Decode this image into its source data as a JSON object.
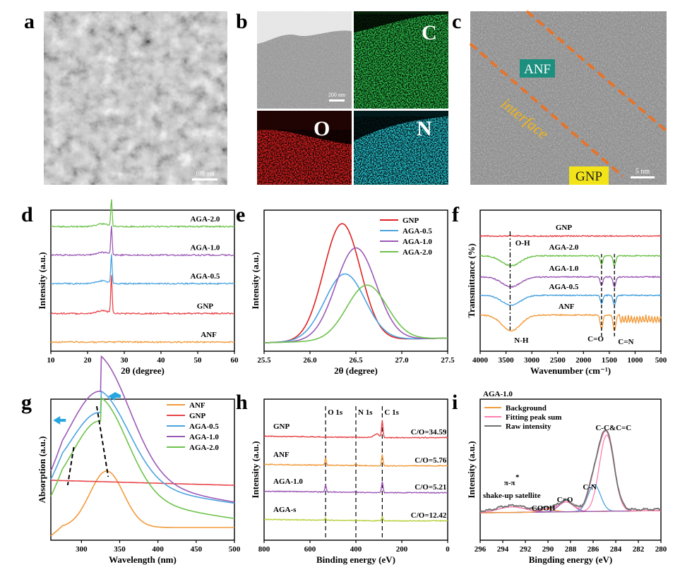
{
  "panel_letters": [
    "a",
    "b",
    "c",
    "d",
    "e",
    "f",
    "g",
    "h",
    "i"
  ],
  "micro": {
    "a": {
      "scalebar": "100 nm"
    },
    "b": {
      "scalebar": "200 nm",
      "maps": [
        "C",
        "O",
        "N"
      ],
      "map_colors": [
        "#2cc24a",
        "#e02020",
        "#27c9d6"
      ]
    },
    "c": {
      "labels": [
        "ANF",
        "interface",
        "GNP"
      ],
      "scalebar": "5 nm"
    }
  },
  "chart_data": [
    {
      "panel": "d",
      "type": "line",
      "xlabel": "2θ (degree)",
      "ylabel": "Intensity (a.u.)",
      "xlim": [
        10,
        60
      ],
      "xticks": [
        10,
        20,
        30,
        40,
        50,
        60
      ],
      "series": [
        {
          "name": "ANF",
          "color": "#f29a3a",
          "offset": 0,
          "peak": null
        },
        {
          "name": "GNP",
          "color": "#e8454a",
          "offset": 0.22,
          "peak": 26.5
        },
        {
          "name": "AGA-0.5",
          "color": "#4aa3df",
          "offset": 0.45,
          "peak": 26.5
        },
        {
          "name": "AGA-1.0",
          "color": "#9b59b6",
          "offset": 0.67,
          "peak": 26.5
        },
        {
          "name": "AGA-2.0",
          "color": "#6dc24b",
          "offset": 0.89,
          "peak": 26.5
        }
      ]
    },
    {
      "panel": "e",
      "type": "line",
      "xlabel": "2θ (degree)",
      "ylabel": "Intensity (a.u.)",
      "xlim": [
        25.5,
        27.5
      ],
      "xticks": [
        25.5,
        26.0,
        26.5,
        27.0,
        27.5
      ],
      "legend_position": "top-right",
      "series": [
        {
          "name": "GNP",
          "color": "#e02020",
          "center": 26.35,
          "height": 1.0,
          "width": 0.2
        },
        {
          "name": "AGA-0.5",
          "color": "#4aa3df",
          "center": 26.38,
          "height": 0.57,
          "width": 0.22
        },
        {
          "name": "AGA-1.0",
          "color": "#9b59b6",
          "center": 26.5,
          "height": 0.79,
          "width": 0.22
        },
        {
          "name": "AGA-2.0",
          "color": "#6dc24b",
          "center": 26.62,
          "height": 0.47,
          "width": 0.22
        }
      ]
    },
    {
      "panel": "f",
      "type": "line",
      "xlabel": "Wavenumber (cm⁻¹)",
      "ylabel": "Transmittance (%)",
      "xlim": [
        4000,
        500
      ],
      "xticks": [
        4000,
        3500,
        3000,
        2500,
        2000,
        1500,
        1000,
        500
      ],
      "series": [
        {
          "name": "GNP",
          "color": "#e8454a"
        },
        {
          "name": "AGA-2.0",
          "color": "#6dc24b"
        },
        {
          "name": "AGA-1.0",
          "color": "#9b59b6"
        },
        {
          "name": "AGA-0.5",
          "color": "#4aa3df"
        },
        {
          "name": "ANF",
          "color": "#f29a3a"
        }
      ],
      "annotations": [
        "O-H",
        "N-H",
        "C=O",
        "C=N"
      ]
    },
    {
      "panel": "g",
      "type": "line",
      "xlabel": "Wavelength (nm)",
      "ylabel": "Absorption (a.u.)",
      "xlim": [
        260,
        500
      ],
      "xticks": [
        300,
        350,
        400,
        450,
        500
      ],
      "legend_position": "top-right",
      "series": [
        {
          "name": "ANF",
          "color": "#f29a3a",
          "peak": 333
        },
        {
          "name": "GNP",
          "color": "#e8454a",
          "peak": null
        },
        {
          "name": "AGA-0.5",
          "color": "#4aa3df",
          "peak": 325
        },
        {
          "name": "AGA-1.0",
          "color": "#9b59b6",
          "peak": 325
        },
        {
          "name": "AGA-2.0",
          "color": "#6dc24b",
          "peak": 325
        }
      ]
    },
    {
      "panel": "h",
      "type": "line",
      "xlabel": "Binding energy (eV)",
      "ylabel": "Intensity (a.u.)",
      "xlim": [
        800,
        0
      ],
      "xticks": [
        800,
        600,
        400,
        200,
        0
      ],
      "peak_lines": [
        {
          "label": "O 1s",
          "x": 532
        },
        {
          "label": "N 1s",
          "x": 400
        },
        {
          "label": "C 1s",
          "x": 285
        }
      ],
      "series": [
        {
          "name": "GNP",
          "color": "#e8454a",
          "ratio": "C/O=34.59"
        },
        {
          "name": "ANF",
          "color": "#f29a3a",
          "ratio": "C/O=5.76"
        },
        {
          "name": "AGA-1.0",
          "color": "#9b59b6",
          "ratio": "C/O=5.21"
        },
        {
          "name": "AGA-s",
          "color": "#b9cf3a",
          "ratio": "C/O=12.42"
        }
      ]
    },
    {
      "panel": "i",
      "type": "line",
      "title": "AGA-1.0",
      "xlabel": "Bingding energy (eV)",
      "ylabel": "Intensity (a.u.)",
      "xlim": [
        296,
        280
      ],
      "xticks": [
        296,
        294,
        292,
        290,
        288,
        286,
        284,
        282,
        280
      ],
      "legend_position": "top-left",
      "legend": [
        {
          "name": "Background",
          "color": "#f29a3a"
        },
        {
          "name": "Fitting peak sum",
          "color": "#ff7fb0"
        },
        {
          "name": "Raw intensity",
          "color": "#707070"
        }
      ],
      "components": [
        {
          "name": "C-C&C=C",
          "center": 284.8,
          "color": "#ff7fb0"
        },
        {
          "name": "C-N",
          "center": 285.9,
          "color": "#4aa3df"
        },
        {
          "name": "C=O",
          "center": 288.4,
          "color": "#9b59b6"
        },
        {
          "name": "COOH",
          "center": 290.0,
          "color": "#f29a3a"
        },
        {
          "name": "π-π*",
          "center": 293.2,
          "color": "#9b59b6"
        }
      ],
      "annotations": [
        "C-C&C=C",
        "C-N",
        "C=O",
        "COOH",
        "π-π",
        "*",
        "shake-up satellite"
      ]
    }
  ]
}
